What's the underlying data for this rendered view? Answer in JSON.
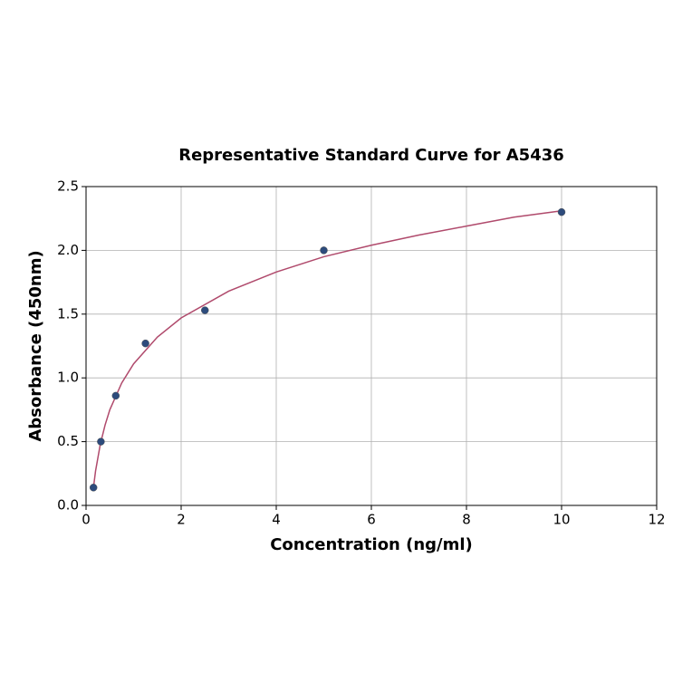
{
  "chart_data": {
    "type": "scatter",
    "title": "Representative Standard Curve for A5436",
    "x_label": "Concentration (ng/ml)",
    "y_label": "Absorbance (450nm)",
    "xlim": [
      0,
      12
    ],
    "xticks": [
      0,
      2,
      4,
      6,
      8,
      10,
      12
    ],
    "ylim": [
      0,
      2.5
    ],
    "yticks": [
      {
        "value": 0,
        "label": "0.0"
      },
      0.5,
      {
        "value": 1,
        "label": "1.0"
      },
      1.5,
      {
        "value": 2,
        "label": "2.0"
      },
      2.5
    ],
    "grid": true,
    "series": [
      {
        "type": "line",
        "color": "#b04a6c",
        "x": [
          0.156,
          0.2,
          0.3,
          0.4,
          0.5,
          0.75,
          1,
          1.5,
          2,
          3,
          4,
          5,
          6,
          7,
          8,
          9,
          10
        ],
        "values": [
          0.14,
          0.27,
          0.48,
          0.63,
          0.75,
          0.96,
          1.11,
          1.32,
          1.47,
          1.68,
          1.83,
          1.95,
          2.04,
          2.12,
          2.19,
          2.26,
          2.31
        ]
      },
      {
        "type": "scatter",
        "color": "#2d4b7c",
        "x": [
          0.156,
          0.312,
          0.625,
          1.25,
          2.5,
          5,
          10
        ],
        "values": [
          0.14,
          0.5,
          0.86,
          1.27,
          1.53,
          2.0,
          2.3
        ]
      }
    ]
  }
}
